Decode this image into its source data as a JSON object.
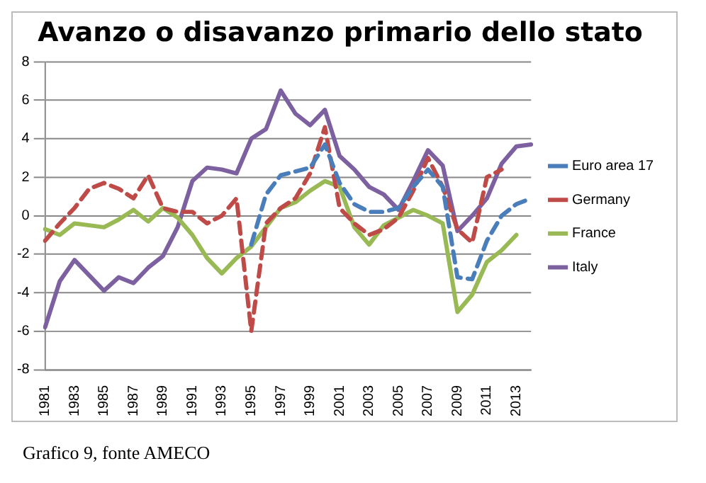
{
  "chart_data": {
    "type": "line",
    "title": "Avanzo o disavanzo primario dello stato",
    "categories": [
      "1981",
      null,
      "1983",
      null,
      "1985",
      null,
      "1987",
      null,
      "1989",
      null,
      "1991",
      null,
      "1993",
      null,
      "1995",
      null,
      "1997",
      null,
      "1999",
      null,
      "2001",
      null,
      "2003",
      null,
      "2005",
      null,
      "2007",
      null,
      "2009",
      null,
      "2011",
      null,
      "2013",
      null
    ],
    "series": [
      {
        "name": "Euro area 17",
        "color": "#4a7ebb",
        "line_style": "dashed",
        "values": [
          null,
          null,
          null,
          null,
          null,
          null,
          null,
          null,
          null,
          null,
          null,
          null,
          null,
          null,
          -1.5,
          1.1,
          2.1,
          2.3,
          2.5,
          3.7,
          1.7,
          0.6,
          0.2,
          0.2,
          0.4,
          1.5,
          2.4,
          1.5,
          -3.2,
          -3.3,
          -1.3,
          0.0,
          0.6,
          0.9
        ]
      },
      {
        "name": "Germany",
        "color": "#be4b48",
        "line_style": "dashed",
        "values": [
          -1.3,
          -0.4,
          0.4,
          1.4,
          1.7,
          1.4,
          0.9,
          2.1,
          0.4,
          0.2,
          0.2,
          -0.4,
          0.0,
          0.9,
          -6.0,
          -0.4,
          0.4,
          0.9,
          2.2,
          4.6,
          0.4,
          -0.4,
          -1.0,
          -0.7,
          -0.1,
          1.3,
          3.0,
          1.5,
          -0.7,
          -1.4,
          2.0,
          2.4,
          null,
          null
        ]
      },
      {
        "name": "France",
        "color": "#98b954",
        "line_style": "solid",
        "values": [
          -0.7,
          -1.0,
          -0.4,
          -0.5,
          -0.6,
          -0.2,
          0.3,
          -0.3,
          0.4,
          -0.1,
          -1.0,
          -2.2,
          -3.0,
          -2.2,
          -1.6,
          -0.6,
          0.4,
          0.7,
          1.3,
          1.8,
          1.5,
          -0.6,
          -1.5,
          -0.5,
          -0.1,
          0.3,
          0.0,
          -0.4,
          -5.0,
          -4.1,
          -2.4,
          -1.8,
          -1.0,
          null
        ]
      },
      {
        "name": "Italy",
        "color": "#7d60a0",
        "line_style": "solid",
        "values": [
          -5.8,
          -3.4,
          -2.3,
          -3.1,
          -3.9,
          -3.2,
          -3.5,
          -2.7,
          -2.1,
          -0.6,
          1.8,
          2.5,
          2.4,
          2.2,
          4.0,
          4.5,
          6.5,
          5.3,
          4.7,
          5.5,
          3.1,
          2.4,
          1.5,
          1.1,
          0.3,
          1.8,
          3.4,
          2.6,
          -0.8,
          0.0,
          0.9,
          2.7,
          3.6,
          3.7
        ]
      }
    ],
    "ylim": [
      -8,
      8
    ],
    "yticks": [
      -8,
      -6,
      -4,
      -2,
      0,
      2,
      4,
      6,
      8
    ],
    "grid": "y",
    "legend": "right",
    "marker": "none",
    "annotations": [
      "Grafico 9, fonte AMECO"
    ]
  }
}
